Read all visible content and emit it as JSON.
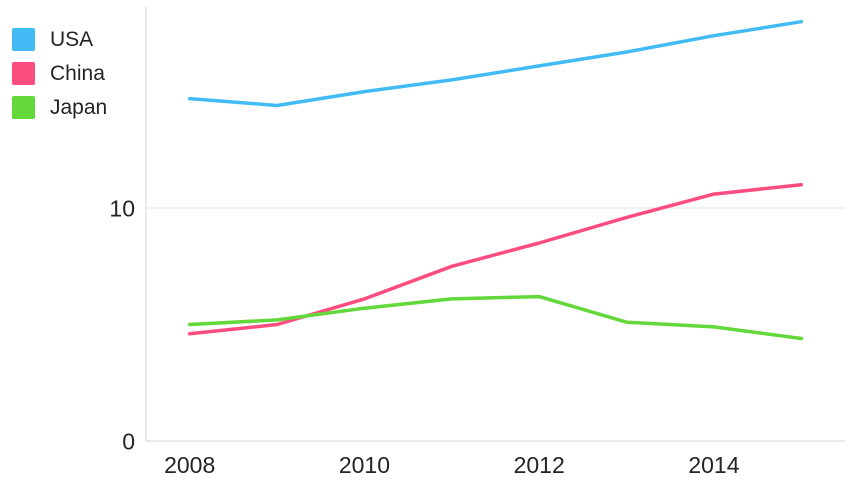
{
  "chart_data": {
    "type": "line",
    "x": [
      2008,
      2009,
      2010,
      2011,
      2012,
      2013,
      2014,
      2015
    ],
    "series": [
      {
        "name": "USA",
        "color": "#42bbf4",
        "values": [
          14.7,
          14.4,
          15.0,
          15.5,
          16.1,
          16.7,
          17.4,
          18.0
        ]
      },
      {
        "name": "China",
        "color": "#fd4d80",
        "values": [
          4.6,
          5.0,
          6.1,
          7.5,
          8.5,
          9.6,
          10.6,
          11.0
        ]
      },
      {
        "name": "Japan",
        "color": "#62d83b",
        "values": [
          5.0,
          5.2,
          5.7,
          6.1,
          6.2,
          5.1,
          4.9,
          4.4
        ]
      }
    ],
    "title": "",
    "xlabel": "",
    "ylabel": "",
    "x_ticks": [
      2008,
      2010,
      2012,
      2014
    ],
    "x_tick_labels": [
      "2008",
      "2010",
      "2012",
      "2014"
    ],
    "y_ticks": [
      0,
      10
    ],
    "y_tick_labels": [
      "0",
      "10"
    ],
    "x_range": [
      2007.5,
      2015.5
    ],
    "y_range": [
      0,
      18.63
    ],
    "grid": "horizontal-only",
    "legend_position": "top-left"
  },
  "colors": {
    "background": "#ffffff",
    "axis_line": "#e9e9eb",
    "grid_line": "#f1f1f2",
    "tick_text": "#242428"
  }
}
